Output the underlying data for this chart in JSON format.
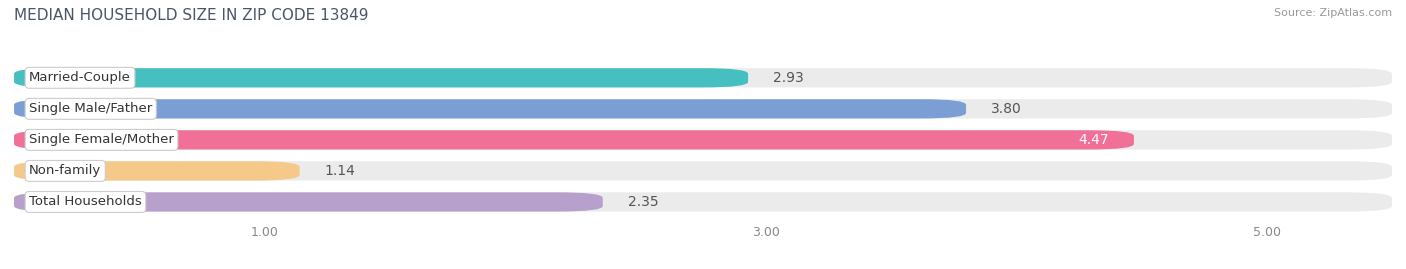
{
  "title": "MEDIAN HOUSEHOLD SIZE IN ZIP CODE 13849",
  "source": "Source: ZipAtlas.com",
  "categories": [
    "Married-Couple",
    "Single Male/Father",
    "Single Female/Mother",
    "Non-family",
    "Total Households"
  ],
  "values": [
    2.93,
    3.8,
    4.47,
    1.14,
    2.35
  ],
  "bar_colors": [
    "#45BFBF",
    "#7B9FD4",
    "#F07098",
    "#F5C98A",
    "#B8A0CC"
  ],
  "xlim_start": 0,
  "xlim_end": 5.5,
  "xticks": [
    1.0,
    3.0,
    5.0
  ],
  "xtick_labels": [
    "1.00",
    "3.00",
    "5.00"
  ],
  "label_fontsize": 9.5,
  "value_fontsize": 10,
  "title_fontsize": 11,
  "background_color": "#FFFFFF",
  "bar_bg_color": "#EBEBEB",
  "bar_height": 0.62,
  "bar_gap": 0.15,
  "title_color": "#4A5568",
  "source_color": "#999999",
  "value_label_color_inside": "#FFFFFF",
  "value_label_color_outside": "#666666"
}
